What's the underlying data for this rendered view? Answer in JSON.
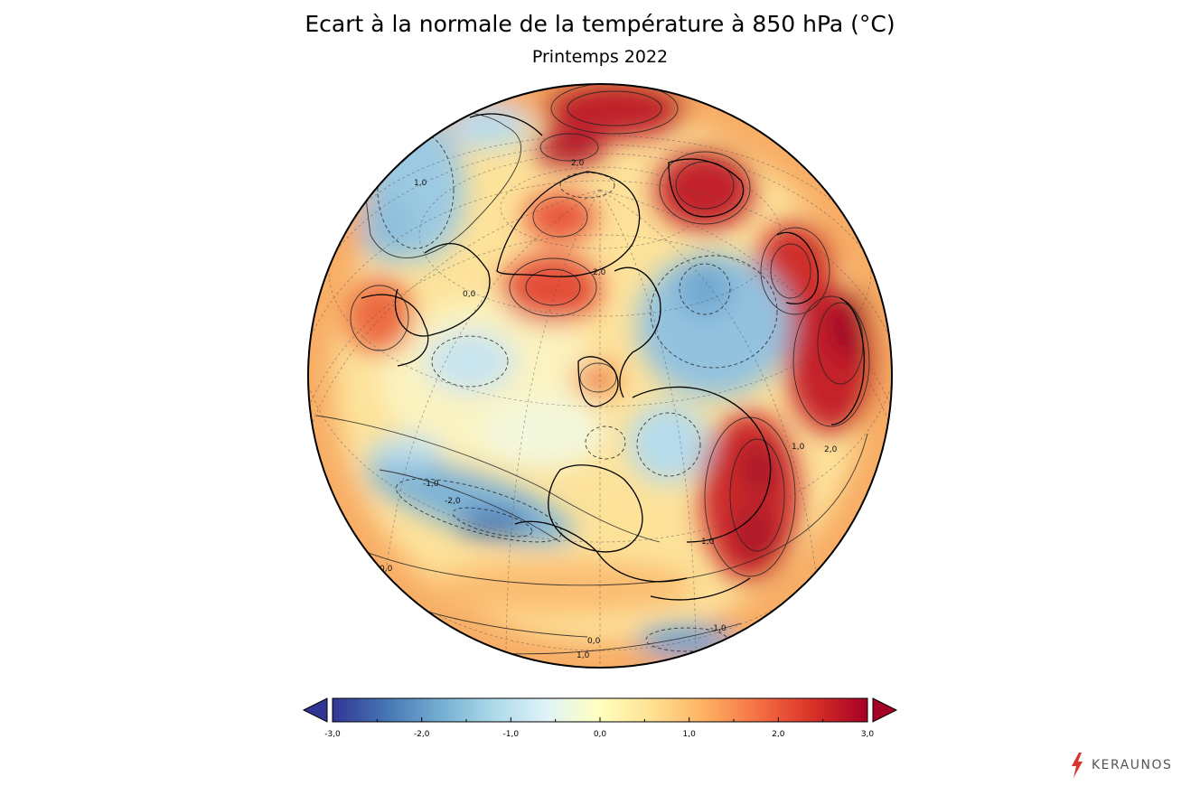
{
  "title": "Ecart à la normale de la température à 850 hPa (°C)",
  "subtitle": "Printemps 2022",
  "brand": {
    "name": "KERAUNOS",
    "icon": "lightning-bolt-icon",
    "icon_color": "#d9342b"
  },
  "contour_labels": [
    "2,0",
    "1,0",
    "0,0",
    "-1,0",
    "-2,0",
    "2,0",
    "1,0",
    "0,0",
    "-1,0",
    "1,0",
    "2,0",
    "0,0",
    "1,0"
  ],
  "colorbar": {
    "min": -3.0,
    "max": 3.0,
    "ticks": [
      "-3,0",
      "-2,0",
      "-1,0",
      "0,0",
      "1,0",
      "2,0",
      "3,0"
    ],
    "extend": "both",
    "stops": [
      "#313695",
      "#4575b4",
      "#74add1",
      "#abd9e9",
      "#e0f3f8",
      "#ffffbf",
      "#fee090",
      "#fdae61",
      "#f46d43",
      "#d73027",
      "#a50026"
    ],
    "under_color": "#313695",
    "over_color": "#a50026"
  }
}
